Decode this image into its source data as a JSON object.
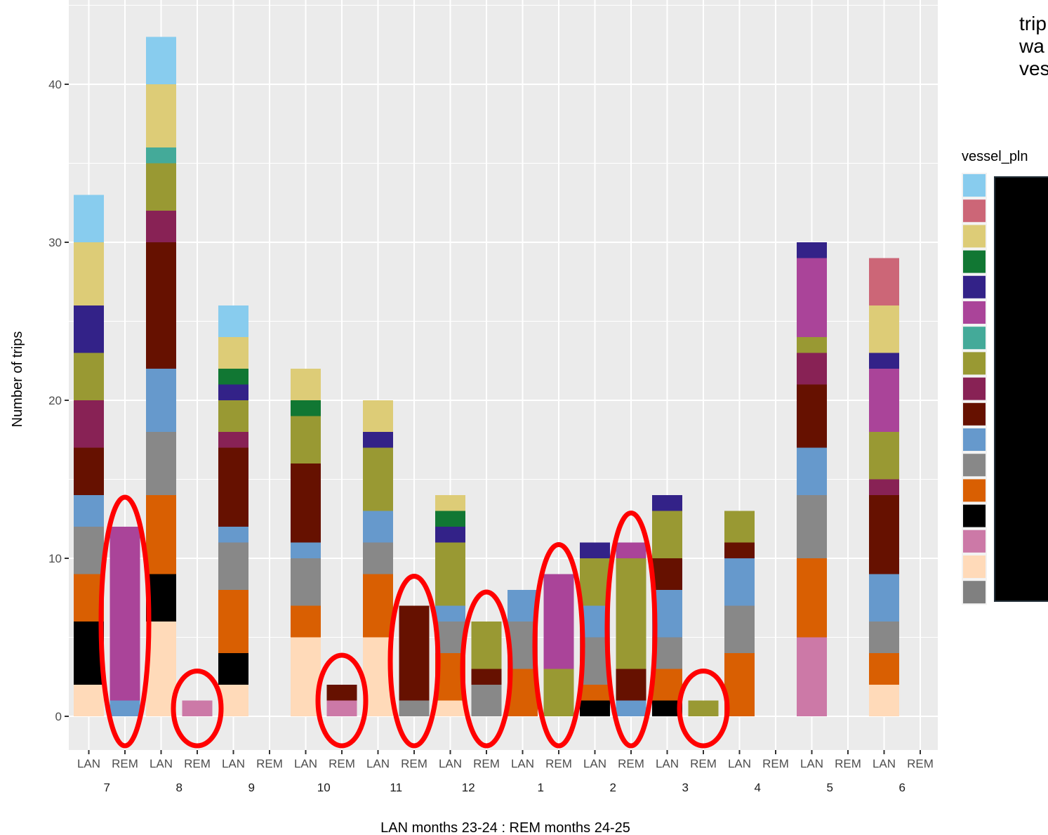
{
  "corner_text": [
    "trip",
    "wa",
    "ves"
  ],
  "colors": {
    "panel": "#EBEBEB",
    "grid_major": "#FFFFFF",
    "highlight": "#FF0000"
  },
  "vessel_colors": [
    "#88CCEE",
    "#CC6677",
    "#DDCC77",
    "#117733",
    "#332288",
    "#AA4499",
    "#44AA99",
    "#999933",
    "#882255",
    "#661100",
    "#6699CC",
    "#888888",
    "#D95F02",
    "#000000",
    "#CC79A7",
    "#FFDAB9",
    "#808080"
  ],
  "chart_data": {
    "type": "bar",
    "stacked": true,
    "xlabel": "LAN months 23-24 : REM months 24-25",
    "ylabel": "Number of trips",
    "ylim": [
      -2,
      45
    ],
    "yticks": [
      0,
      10,
      20,
      30,
      40
    ],
    "grid": true,
    "legend": {
      "title": "vessel_pln",
      "position": "right"
    },
    "groups": [
      "7",
      "8",
      "9",
      "10",
      "11",
      "12",
      "1",
      "2",
      "3",
      "4",
      "5",
      "6"
    ],
    "sub_categories": [
      "LAN",
      "REM"
    ],
    "bars": [
      {
        "group": "7",
        "type": "LAN",
        "stack": [
          [
            15,
            2
          ],
          [
            13,
            4
          ],
          [
            12,
            3
          ],
          [
            11,
            3
          ],
          [
            10,
            2
          ],
          [
            9,
            3
          ],
          [
            8,
            3
          ],
          [
            7,
            3
          ],
          [
            4,
            3
          ],
          [
            2,
            4
          ],
          [
            0,
            3
          ]
        ]
      },
      {
        "group": "7",
        "type": "REM",
        "stack": [
          [
            10,
            1
          ],
          [
            5,
            11
          ]
        ],
        "highlighted": true
      },
      {
        "group": "8",
        "type": "LAN",
        "stack": [
          [
            15,
            6
          ],
          [
            13,
            3
          ],
          [
            12,
            5
          ],
          [
            11,
            4
          ],
          [
            10,
            4
          ],
          [
            9,
            8
          ],
          [
            8,
            2
          ],
          [
            7,
            3
          ],
          [
            6,
            1
          ],
          [
            2,
            4
          ],
          [
            0,
            3
          ]
        ]
      },
      {
        "group": "8",
        "type": "REM",
        "stack": [
          [
            14,
            1
          ]
        ],
        "highlighted": true
      },
      {
        "group": "9",
        "type": "LAN",
        "stack": [
          [
            15,
            2
          ],
          [
            13,
            2
          ],
          [
            12,
            4
          ],
          [
            11,
            3
          ],
          [
            10,
            1
          ],
          [
            9,
            5
          ],
          [
            8,
            1
          ],
          [
            7,
            2
          ],
          [
            4,
            1
          ],
          [
            3,
            1
          ],
          [
            2,
            2
          ],
          [
            0,
            2
          ]
        ]
      },
      {
        "group": "9",
        "type": "REM",
        "stack": []
      },
      {
        "group": "10",
        "type": "LAN",
        "stack": [
          [
            15,
            5
          ],
          [
            12,
            2
          ],
          [
            11,
            3
          ],
          [
            10,
            1
          ],
          [
            9,
            5
          ],
          [
            7,
            3
          ],
          [
            3,
            1
          ],
          [
            2,
            2
          ]
        ]
      },
      {
        "group": "10",
        "type": "REM",
        "stack": [
          [
            14,
            1
          ],
          [
            9,
            1
          ]
        ],
        "highlighted": true
      },
      {
        "group": "11",
        "type": "LAN",
        "stack": [
          [
            15,
            5
          ],
          [
            12,
            4
          ],
          [
            11,
            2
          ],
          [
            10,
            2
          ],
          [
            7,
            4
          ],
          [
            4,
            1
          ],
          [
            2,
            2
          ]
        ]
      },
      {
        "group": "11",
        "type": "REM",
        "stack": [
          [
            11,
            1
          ],
          [
            9,
            6
          ]
        ],
        "highlighted": true
      },
      {
        "group": "12",
        "type": "LAN",
        "stack": [
          [
            15,
            1
          ],
          [
            12,
            3
          ],
          [
            11,
            2
          ],
          [
            10,
            1
          ],
          [
            7,
            4
          ],
          [
            4,
            1
          ],
          [
            3,
            1
          ],
          [
            2,
            1
          ]
        ]
      },
      {
        "group": "12",
        "type": "REM",
        "stack": [
          [
            11,
            2
          ],
          [
            9,
            1
          ],
          [
            7,
            3
          ]
        ],
        "highlighted": true
      },
      {
        "group": "1",
        "type": "LAN",
        "stack": [
          [
            12,
            3
          ],
          [
            11,
            3
          ],
          [
            10,
            2
          ]
        ]
      },
      {
        "group": "1",
        "type": "REM",
        "stack": [
          [
            7,
            3
          ],
          [
            5,
            6
          ]
        ],
        "highlighted": true
      },
      {
        "group": "2",
        "type": "LAN",
        "stack": [
          [
            13,
            1
          ],
          [
            12,
            1
          ],
          [
            11,
            3
          ],
          [
            10,
            2
          ],
          [
            7,
            3
          ],
          [
            4,
            1
          ]
        ]
      },
      {
        "group": "2",
        "type": "REM",
        "stack": [
          [
            10,
            1
          ],
          [
            9,
            2
          ],
          [
            7,
            7
          ],
          [
            5,
            1
          ]
        ],
        "highlighted": true
      },
      {
        "group": "3",
        "type": "LAN",
        "stack": [
          [
            13,
            1
          ],
          [
            12,
            2
          ],
          [
            11,
            2
          ],
          [
            10,
            3
          ],
          [
            9,
            2
          ],
          [
            7,
            3
          ],
          [
            4,
            1
          ]
        ]
      },
      {
        "group": "3",
        "type": "REM",
        "stack": [
          [
            7,
            1
          ]
        ],
        "highlighted": true
      },
      {
        "group": "4",
        "type": "LAN",
        "stack": [
          [
            12,
            4
          ],
          [
            11,
            3
          ],
          [
            10,
            3
          ],
          [
            9,
            1
          ],
          [
            7,
            2
          ]
        ]
      },
      {
        "group": "4",
        "type": "REM",
        "stack": []
      },
      {
        "group": "5",
        "type": "LAN",
        "stack": [
          [
            14,
            5
          ],
          [
            12,
            5
          ],
          [
            11,
            4
          ],
          [
            10,
            3
          ],
          [
            9,
            4
          ],
          [
            8,
            2
          ],
          [
            7,
            1
          ],
          [
            5,
            5
          ],
          [
            4,
            1
          ]
        ]
      },
      {
        "group": "5",
        "type": "REM",
        "stack": []
      },
      {
        "group": "6",
        "type": "LAN",
        "stack": [
          [
            15,
            2
          ],
          [
            12,
            2
          ],
          [
            11,
            2
          ],
          [
            10,
            3
          ],
          [
            9,
            5
          ],
          [
            8,
            1
          ],
          [
            7,
            3
          ],
          [
            5,
            4
          ],
          [
            4,
            1
          ],
          [
            2,
            3
          ],
          [
            1,
            3
          ]
        ]
      },
      {
        "group": "6",
        "type": "REM",
        "stack": []
      }
    ]
  }
}
